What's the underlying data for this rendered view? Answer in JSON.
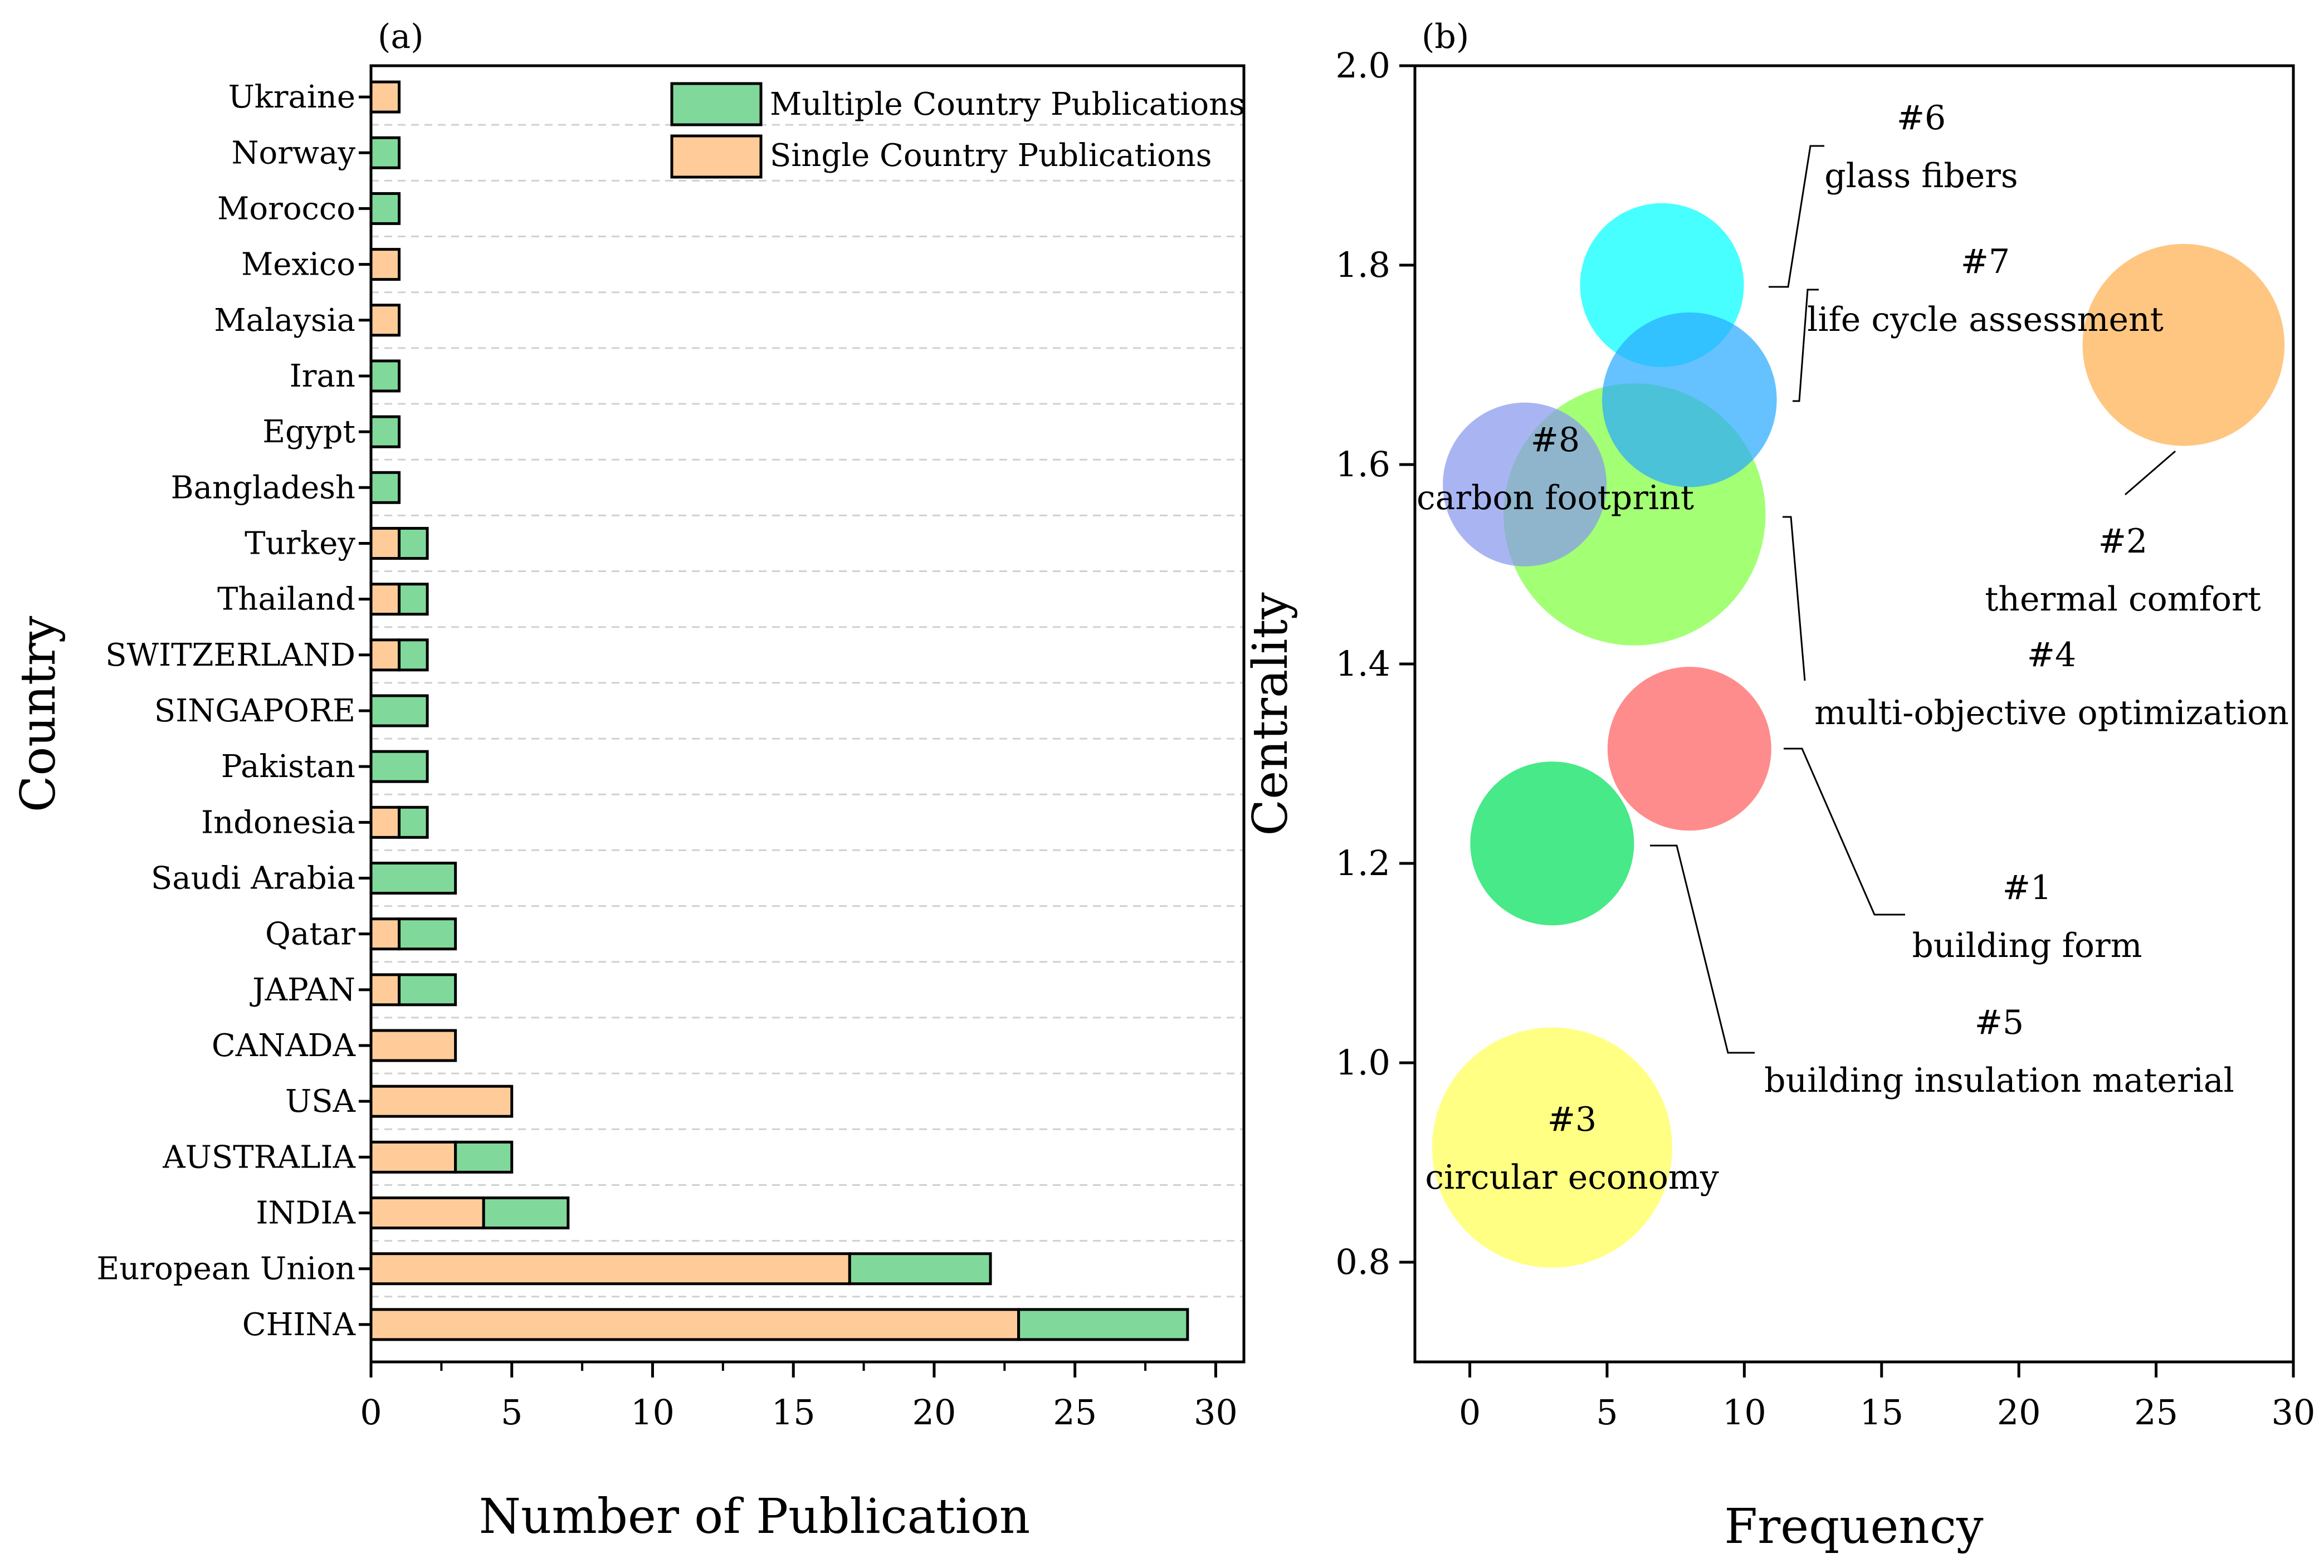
{
  "colors": {
    "multiple": "#80d99b",
    "single": "#ffcc99",
    "grid": "#d0d0d0"
  },
  "chart_data": [
    {
      "type": "bar",
      "orientation": "horizontal",
      "stacked": true,
      "panel_label": "(a)",
      "xlabel": "Number of Publication",
      "ylabel": "Country",
      "xlim": [
        0,
        31
      ],
      "xticks": [
        "0",
        "5",
        "10",
        "15",
        "20",
        "25",
        "30"
      ],
      "grid": true,
      "legend_position": "top-right",
      "categories": [
        "Ukraine",
        "Norway",
        "Morocco",
        "Mexico",
        "Malaysia",
        "Iran",
        "Egypt",
        "Bangladesh",
        "Turkey",
        "Thailand",
        "SWITZERLAND",
        "SINGAPORE",
        "Pakistan",
        "Indonesia",
        "Saudi Arabia",
        "Qatar",
        "JAPAN",
        "CANADA",
        "USA",
        "AUSTRALIA",
        "INDIA",
        "European Union",
        "CHINA"
      ],
      "series": [
        {
          "name": "Single Country Publications",
          "color": "#ffcc99",
          "values": [
            1,
            0,
            0,
            1,
            1,
            0,
            0,
            0,
            1,
            1,
            1,
            0,
            0,
            1,
            0,
            1,
            1,
            3,
            5,
            3,
            4,
            17,
            23
          ]
        },
        {
          "name": "Multiple Country Publications",
          "color": "#80d99b",
          "values": [
            0,
            1,
            1,
            0,
            0,
            1,
            1,
            1,
            1,
            1,
            1,
            2,
            2,
            1,
            3,
            2,
            2,
            0,
            0,
            2,
            3,
            5,
            6
          ]
        }
      ],
      "legend": [
        "Multiple Country Publications",
        "Single Country Publications"
      ]
    },
    {
      "type": "scatter",
      "subtype": "bubble",
      "panel_label": "(b)",
      "xlabel": "Frequency",
      "ylabel": "Centrality",
      "xlim": [
        -2,
        30
      ],
      "ylim": [
        0.7,
        2.0
      ],
      "xticks": [
        "0",
        "5",
        "10",
        "15",
        "20",
        "25",
        "30"
      ],
      "yticks": [
        "0.8",
        "1.0",
        "1.2",
        "1.4",
        "1.6",
        "1.8",
        "2.0"
      ],
      "points": [
        {
          "id": "#6",
          "label": "glass fibers",
          "x": 7,
          "y": 1.78,
          "size": 3,
          "color": "#00ffff"
        },
        {
          "id": "#2",
          "label": "thermal comfort",
          "x": 26,
          "y": 1.72,
          "size": 3.7,
          "color": "#ffb050"
        },
        {
          "id": "#4",
          "label": "multi-objective optimization",
          "x": 6,
          "y": 1.55,
          "size": 4.8,
          "color": "#7fff3f"
        },
        {
          "id": "#7",
          "label": "life cycle assessment",
          "x": 8,
          "y": 1.665,
          "size": 3.2,
          "color": "#2aaaff"
        },
        {
          "id": "#8",
          "label": "carbon footprint",
          "x": 2,
          "y": 1.58,
          "size": 3,
          "color": "#8899ee"
        },
        {
          "id": "#1",
          "label": "building form",
          "x": 8,
          "y": 1.315,
          "size": 3,
          "color": "#ff6060"
        },
        {
          "id": "#5",
          "label": "building insulation material",
          "x": 3,
          "y": 1.22,
          "size": 3,
          "color": "#00e05a"
        },
        {
          "id": "#3",
          "label": "circular economy",
          "x": 3,
          "y": 0.915,
          "size": 4.4,
          "color": "#ffff55"
        }
      ]
    }
  ]
}
